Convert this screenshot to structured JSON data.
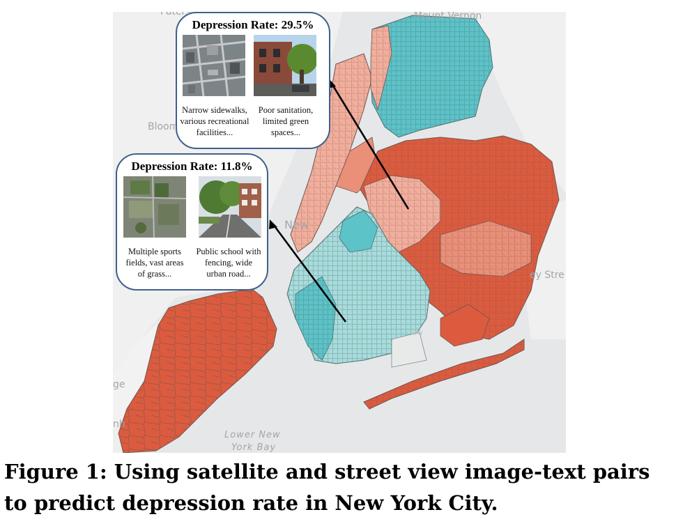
{
  "map": {
    "basemap_labels": {
      "paterson": "Paterson",
      "mount_vernon": "Mount Vernon",
      "bloomfield": "Bloom",
      "new_york": "New",
      "valley_stream": "ey Stre",
      "lower_new_york_bay_1": "Lower New",
      "lower_new_york_bay_2": "York Bay",
      "rockaway": "ew",
      "ridge": "ge",
      "bayonne": "nh"
    },
    "colors": {
      "high": "#dc5b3e",
      "medium_high": "#f2ae9c",
      "low": "#5cc3c8",
      "low_light": "#a8dcdc",
      "water": "#e6e7e8",
      "land": "#f3f3f3",
      "borders": "#6e5650",
      "callout_border": "#3f5f8c"
    }
  },
  "callouts": [
    {
      "title": "Depression Rate: 29.5%",
      "satellite_caption": "Narrow sidewalks, various recreational facilities...",
      "street_caption": "Poor sanitation, limited green spaces..."
    },
    {
      "title": "Depression Rate: 11.8%",
      "satellite_caption": "Multiple sports fields, vast areas of grass...",
      "street_caption": "Public school with fencing, wide urban road..."
    }
  ],
  "figure_caption": "Figure 1: Using satellite and street view image-text pairs to predict depression rate in New York City."
}
